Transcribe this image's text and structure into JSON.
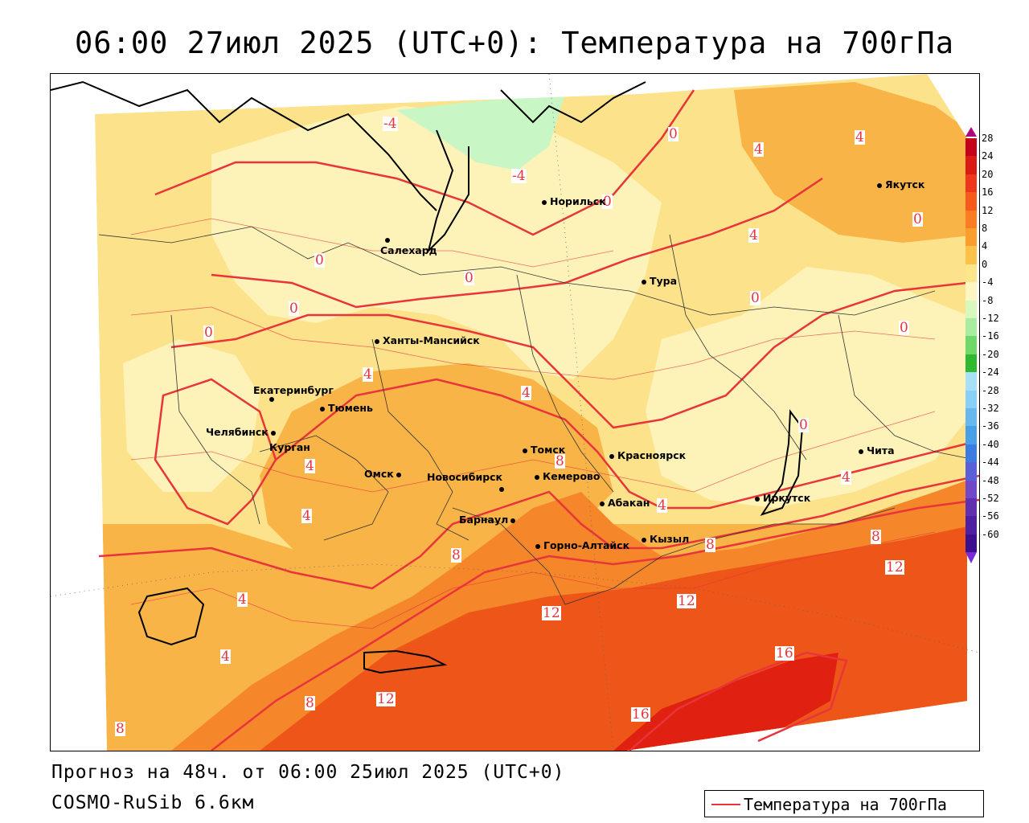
{
  "title": "06:00 27июл 2025 (UTC+0): Температура на 700гПа",
  "forecast_text": "Прогноз на 48ч. от 06:00 25июл 2025 (UTC+0)",
  "model_text": "COSMO-RuSib 6.6км",
  "legend_label": "Температура на 700гПа",
  "colors": {
    "contour_line": "#e8343a",
    "pale_yellow": "#fdf3b8",
    "light_orange": "#fce28a",
    "orange": "#f9b447",
    "dark_orange": "#f5862a",
    "red_orange": "#ee5518",
    "red": "#e02010",
    "green": "#c8f7c5"
  },
  "colorbar": {
    "ticks": [
      "28",
      "24",
      "20",
      "16",
      "12",
      "8",
      "4",
      "0",
      "-4",
      "-8",
      "-12",
      "-16",
      "-20",
      "-24",
      "-28",
      "-32",
      "-36",
      "-40",
      "-44",
      "-48",
      "-52",
      "-56",
      "-60"
    ],
    "colors": [
      "#c4001a",
      "#dc1a14",
      "#f0361a",
      "#f85a1c",
      "#fb7c22",
      "#fc9e2e",
      "#fcc24c",
      "#fde68a",
      "#fff6c4",
      "#d8f8c0",
      "#a8eca0",
      "#70d868",
      "#30b830",
      "#a8e0f8",
      "#88d0f8",
      "#68b8f0",
      "#48a0e8",
      "#3c7ce0",
      "#5a60d8",
      "#7048c8",
      "#6030b0",
      "#4c20a0",
      "#3a108c"
    ]
  },
  "contour_labels": [
    {
      "text": "-4"
    },
    {
      "text": "-4"
    },
    {
      "text": "0"
    },
    {
      "text": "0"
    },
    {
      "text": "0"
    },
    {
      "text": "0"
    },
    {
      "text": "0"
    },
    {
      "text": "0"
    },
    {
      "text": "0"
    },
    {
      "text": "0"
    },
    {
      "text": "0"
    },
    {
      "text": "0"
    },
    {
      "text": "4"
    },
    {
      "text": "4"
    },
    {
      "text": "4"
    },
    {
      "text": "4"
    },
    {
      "text": "4"
    },
    {
      "text": "4"
    },
    {
      "text": "4"
    },
    {
      "text": "4"
    },
    {
      "text": "4"
    },
    {
      "text": "4"
    },
    {
      "text": "4"
    },
    {
      "text": "8"
    },
    {
      "text": "8"
    },
    {
      "text": "8"
    },
    {
      "text": "8"
    },
    {
      "text": "8"
    },
    {
      "text": "8"
    },
    {
      "text": "12"
    },
    {
      "text": "12"
    },
    {
      "text": "12"
    },
    {
      "text": "12"
    },
    {
      "text": "16"
    },
    {
      "text": "16"
    }
  ],
  "cities": [
    {
      "name": "Норильск"
    },
    {
      "name": "Салехард"
    },
    {
      "name": "Тура"
    },
    {
      "name": "Якутск"
    },
    {
      "name": "Ханты-Мансийск"
    },
    {
      "name": "Екатеринбург"
    },
    {
      "name": "Тюмень"
    },
    {
      "name": "Челябинск"
    },
    {
      "name": "Курган"
    },
    {
      "name": "Омск"
    },
    {
      "name": "Новосибирск"
    },
    {
      "name": "Томск"
    },
    {
      "name": "Кемерово"
    },
    {
      "name": "Красноярск"
    },
    {
      "name": "Барнаул"
    },
    {
      "name": "Абакан"
    },
    {
      "name": "Горно-Алтайск"
    },
    {
      "name": "Кызыл"
    },
    {
      "name": "Иркутск"
    },
    {
      "name": "Чита"
    }
  ]
}
